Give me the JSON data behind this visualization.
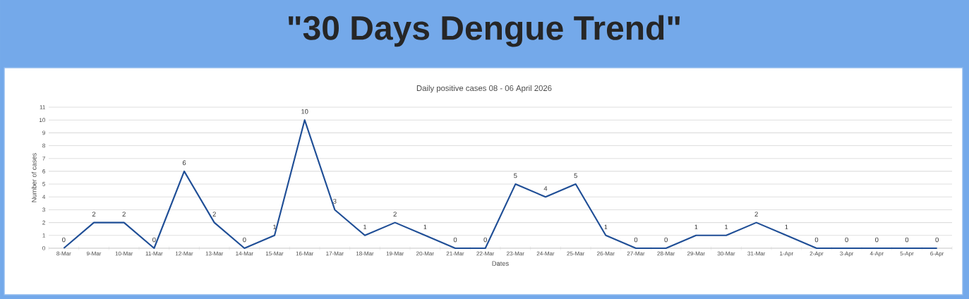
{
  "chart_data": {
    "type": "line",
    "title": "\"30 Days Dengue Trend\"",
    "subtitle": "Daily positive cases 08 - 06 April 2026",
    "xlabel": "Dates",
    "ylabel": "Number of cases",
    "categories": [
      "8-Mar",
      "9-Mar",
      "10-Mar",
      "11-Mar",
      "12-Mar",
      "13-Mar",
      "14-Mar",
      "15-Mar",
      "16-Mar",
      "17-Mar",
      "18-Mar",
      "19-Mar",
      "20-Mar",
      "21-Mar",
      "22-Mar",
      "23-Mar",
      "24-Mar",
      "25-Mar",
      "26-Mar",
      "27-Mar",
      "28-Mar",
      "29-Mar",
      "30-Mar",
      "31-Mar",
      "1-Apr",
      "2-Apr",
      "3-Apr",
      "4-Apr",
      "5-Apr",
      "6-Apr"
    ],
    "values": [
      0,
      2,
      2,
      0,
      6,
      2,
      0,
      1,
      10,
      3,
      1,
      2,
      1,
      0,
      0,
      5,
      4,
      5,
      1,
      0,
      0,
      1,
      1,
      2,
      1,
      0,
      0,
      0,
      0,
      0
    ],
    "color": "#1f4e96",
    "ylim": [
      0,
      11
    ],
    "yticks": [
      0,
      1,
      2,
      3,
      4,
      5,
      6,
      7,
      8,
      9,
      10,
      11
    ],
    "grid": "y",
    "data_labels": true
  }
}
